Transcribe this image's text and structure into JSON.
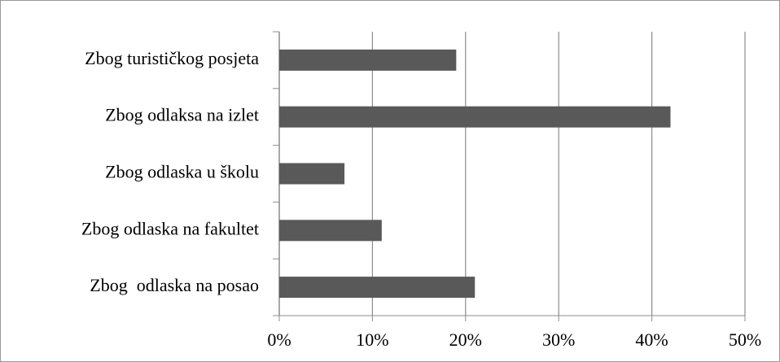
{
  "chart_data": {
    "type": "bar",
    "orientation": "horizontal",
    "categories": [
      "Zbog turističkog posjeta",
      "Zbog odlaksa na izlet",
      "Zbog odlaska u školu",
      "Zbog odlaska na fakultet",
      "Zbog  odlaska na posao"
    ],
    "values": [
      19,
      42,
      7,
      11,
      21
    ],
    "color": "#595959",
    "xlim": [
      0,
      50
    ],
    "xticks": [
      {
        "value": 0,
        "label": "0%"
      },
      {
        "value": 10,
        "label": "10%"
      },
      {
        "value": 20,
        "label": "20%"
      },
      {
        "value": 30,
        "label": "30%"
      },
      {
        "value": 40,
        "label": "40%"
      },
      {
        "value": 50,
        "label": "50%"
      }
    ],
    "grid": true
  }
}
